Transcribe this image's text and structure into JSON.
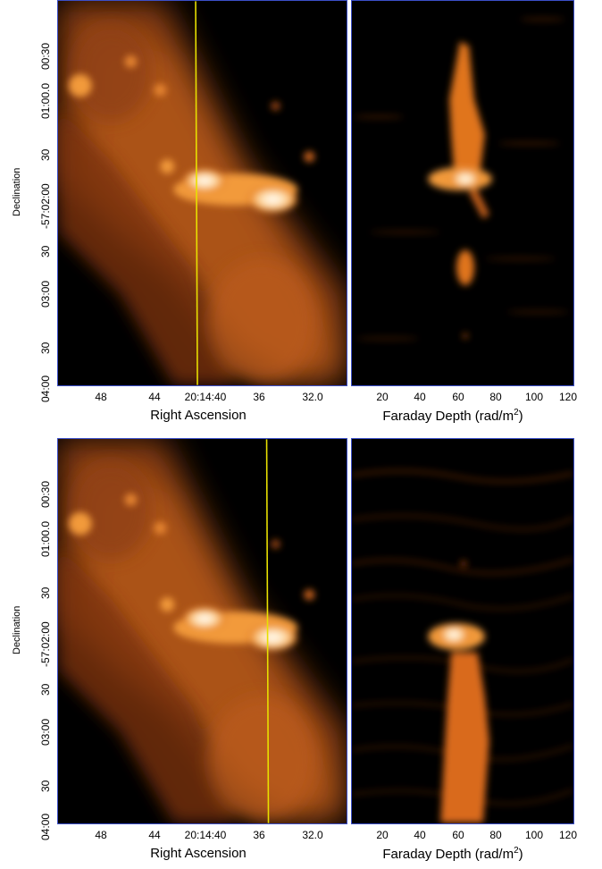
{
  "panels": [
    {
      "left": {
        "ylabel": "Declination",
        "yticks": [
          "00:30",
          "01:00.0",
          "30",
          "-57:02:00",
          "30",
          "03:00",
          "30",
          "04:00"
        ],
        "xticks": [
          "48",
          "44",
          "20:14:40",
          "36",
          "32.0"
        ],
        "xlabel": "Right Ascension",
        "slit_ra": "20:14:40"
      },
      "right": {
        "xticks": [
          "20",
          "40",
          "60",
          "80",
          "100",
          "120"
        ],
        "xlabel": "Faraday Depth (rad/m",
        "xlabel_sup": "2",
        "xlabel_end": ")"
      }
    },
    {
      "left": {
        "ylabel": "Declination",
        "yticks": [
          "00:30",
          "01:00.0",
          "30",
          "-57:02:00",
          "30",
          "03:00",
          "30",
          "04:00"
        ],
        "xticks": [
          "48",
          "44",
          "20:14:40",
          "36",
          "32.0"
        ],
        "xlabel": "Right Ascension",
        "slit_ra": "35"
      },
      "right": {
        "xticks": [
          "20",
          "40",
          "60",
          "80",
          "100",
          "120"
        ],
        "xlabel": "Faraday Depth (rad/m",
        "xlabel_sup": "2",
        "xlabel_end": ")"
      }
    }
  ],
  "colors": {
    "slit_line": "#e8e000",
    "frame_border": "#3b4fc8",
    "emission": "#e0741c",
    "background": "#000000"
  }
}
